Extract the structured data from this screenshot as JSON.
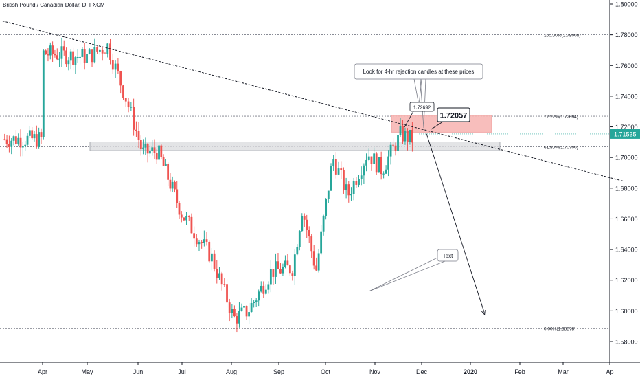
{
  "symbol_title": "British Pound / Canadian Dollar, D, FXCM",
  "colors": {
    "up": "#26a69a",
    "down": "#ef5350",
    "zone_fill": "#f7b7b5",
    "support_fill": "#dcdde0",
    "price_badge": "#26a69a",
    "axis_text": "#131722",
    "grid": "#9598a1"
  },
  "chart_data": {
    "type": "candlestick",
    "x_axis_labels": [
      "Apr",
      "May",
      "Jun",
      "Jul",
      "Aug",
      "Sep",
      "Oct",
      "Nov",
      "Dec",
      "2020",
      "Feb",
      "Mar",
      "Ap"
    ],
    "y_ticks": [
      "1.80000",
      "1.78000",
      "1.76000",
      "1.74000",
      "1.72000",
      "1.70000",
      "1.68000",
      "1.66000",
      "1.64000",
      "1.62000",
      "1.60000",
      "1.58000"
    ],
    "y_range": [
      1.573,
      1.801
    ],
    "current_price": "1.71535",
    "current_price_value": 1.71535,
    "fib_levels": [
      {
        "label": "100.00%(1.78008)",
        "value": 1.78008
      },
      {
        "label": "72.22%(1.72694)",
        "value": 1.72694
      },
      {
        "label": "61.80%(1.70700)",
        "value": 1.707
      },
      {
        "label": "0.00%(1.58878)",
        "value": 1.58878
      }
    ],
    "anchors": [
      {
        "m": 0,
        "p": 1.768
      },
      {
        "m": 1.0,
        "p": 1.7655
      },
      {
        "m": 1.4,
        "p": 1.773
      },
      {
        "m": 1.75,
        "p": 1.74
      },
      {
        "m": 2.1,
        "p": 1.703
      },
      {
        "m": 2.45,
        "p": 1.704
      },
      {
        "m": 3.0,
        "p": 1.663
      },
      {
        "m": 3.6,
        "p": 1.635
      },
      {
        "m": 4.05,
        "p": 1.595
      },
      {
        "m": 4.35,
        "p": 1.6
      },
      {
        "m": 4.85,
        "p": 1.626
      },
      {
        "m": 5.3,
        "p": 1.628
      },
      {
        "m": 5.5,
        "p": 1.667
      },
      {
        "m": 5.8,
        "p": 1.626
      },
      {
        "m": 6.15,
        "p": 1.7
      },
      {
        "m": 6.45,
        "p": 1.675
      },
      {
        "m": 6.85,
        "p": 1.703
      },
      {
        "m": 7.15,
        "p": 1.692
      },
      {
        "m": 7.55,
        "p": 1.715
      },
      {
        "m": 7.8,
        "p": 1.712
      }
    ],
    "resistance_zone": {
      "price_top": 1.7275,
      "price_bottom": 1.7165,
      "from": "mid-Nov",
      "to": "mid-Jan"
    },
    "support_zone": {
      "price_top": 1.7102,
      "price_bottom": 1.7045
    },
    "trendline": {
      "start": {
        "m": -0.9,
        "p": 1.789
      },
      "end": {
        "m": 12.3,
        "p": 1.6845
      }
    },
    "projection_arrow": {
      "start": {
        "m": 8.1,
        "p": 1.7155
      },
      "end": {
        "m": 9.3,
        "p": 1.597
      }
    },
    "annotations": {
      "callout_text": "Look  for 4-hr rejection candles at these prices",
      "price_label_small": "1.72692",
      "price_label_big": "1.72057",
      "text_label": "Text"
    }
  }
}
